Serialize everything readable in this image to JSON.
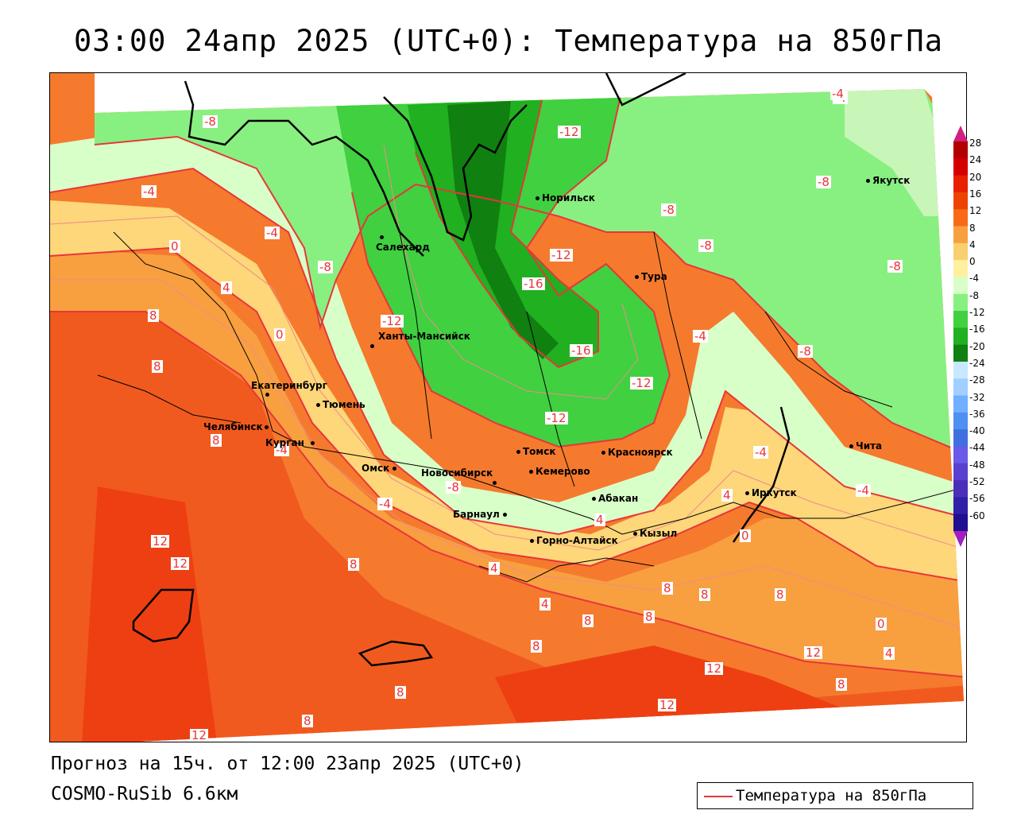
{
  "header": {
    "title": "03:00 24апр 2025 (UTC+0): Температура на 850гПа"
  },
  "map": {
    "contour_labels": [
      "-8",
      "-4",
      "-4",
      "0",
      "-4",
      "-8",
      "-12",
      "-12",
      "-16",
      "-12",
      "-16",
      "-12",
      "-12",
      "-8",
      "-4",
      "-8",
      "-4",
      "-8",
      "-8",
      "-8",
      "-4",
      "-8",
      "-4",
      "-4",
      "-4",
      "0",
      "4",
      "8",
      "8",
      "8",
      "8",
      "12",
      "12",
      "8",
      "4",
      "4",
      "4",
      "0",
      "4",
      "8",
      "8",
      "8",
      "8",
      "8",
      "12",
      "12",
      "12",
      "8",
      "8",
      "8",
      "0",
      "4",
      "12"
    ],
    "cities": [
      "Салехард",
      "Норильск",
      "Тура",
      "Якутск",
      "Ханты-Мансийск",
      "Екатеринбург",
      "Тюмень",
      "Челябинск",
      "Курган",
      "Омск",
      "Новосибирск",
      "Томск",
      "Кемерово",
      "Красноярск",
      "Барнаул",
      "Абакан",
      "Горно-Алтайск",
      "Кызыл",
      "Иркутск",
      "Чита"
    ]
  },
  "colorbar": {
    "labels": [
      "28",
      "24",
      "20",
      "16",
      "12",
      "8",
      "4",
      "0",
      "-4",
      "-8",
      "-12",
      "-16",
      "-20",
      "-24",
      "-28",
      "-32",
      "-36",
      "-40",
      "-44",
      "-48",
      "-52",
      "-56",
      "-60"
    ],
    "colors": [
      "#b40000",
      "#d40000",
      "#e82000",
      "#ee4200",
      "#f86a18",
      "#f8a040",
      "#f8d070",
      "#fff0a0",
      "#d8ffc8",
      "#88f080",
      "#40d040",
      "#20b020",
      "#108010",
      "#c8e8ff",
      "#a0d0ff",
      "#70b0ff",
      "#5090f0",
      "#4070e0",
      "#6a5ae8",
      "#5a40d0",
      "#4a30b8",
      "#3020a8",
      "#201090"
    ]
  },
  "footer": {
    "forecast_line": "Прогноз на 15ч. от 12:00 23апр 2025 (UTC+0)",
    "model_line": "COSMO-RuSib 6.6км"
  },
  "legend": {
    "label": "Температура на 850гПа",
    "line_color": "#e8363a"
  }
}
